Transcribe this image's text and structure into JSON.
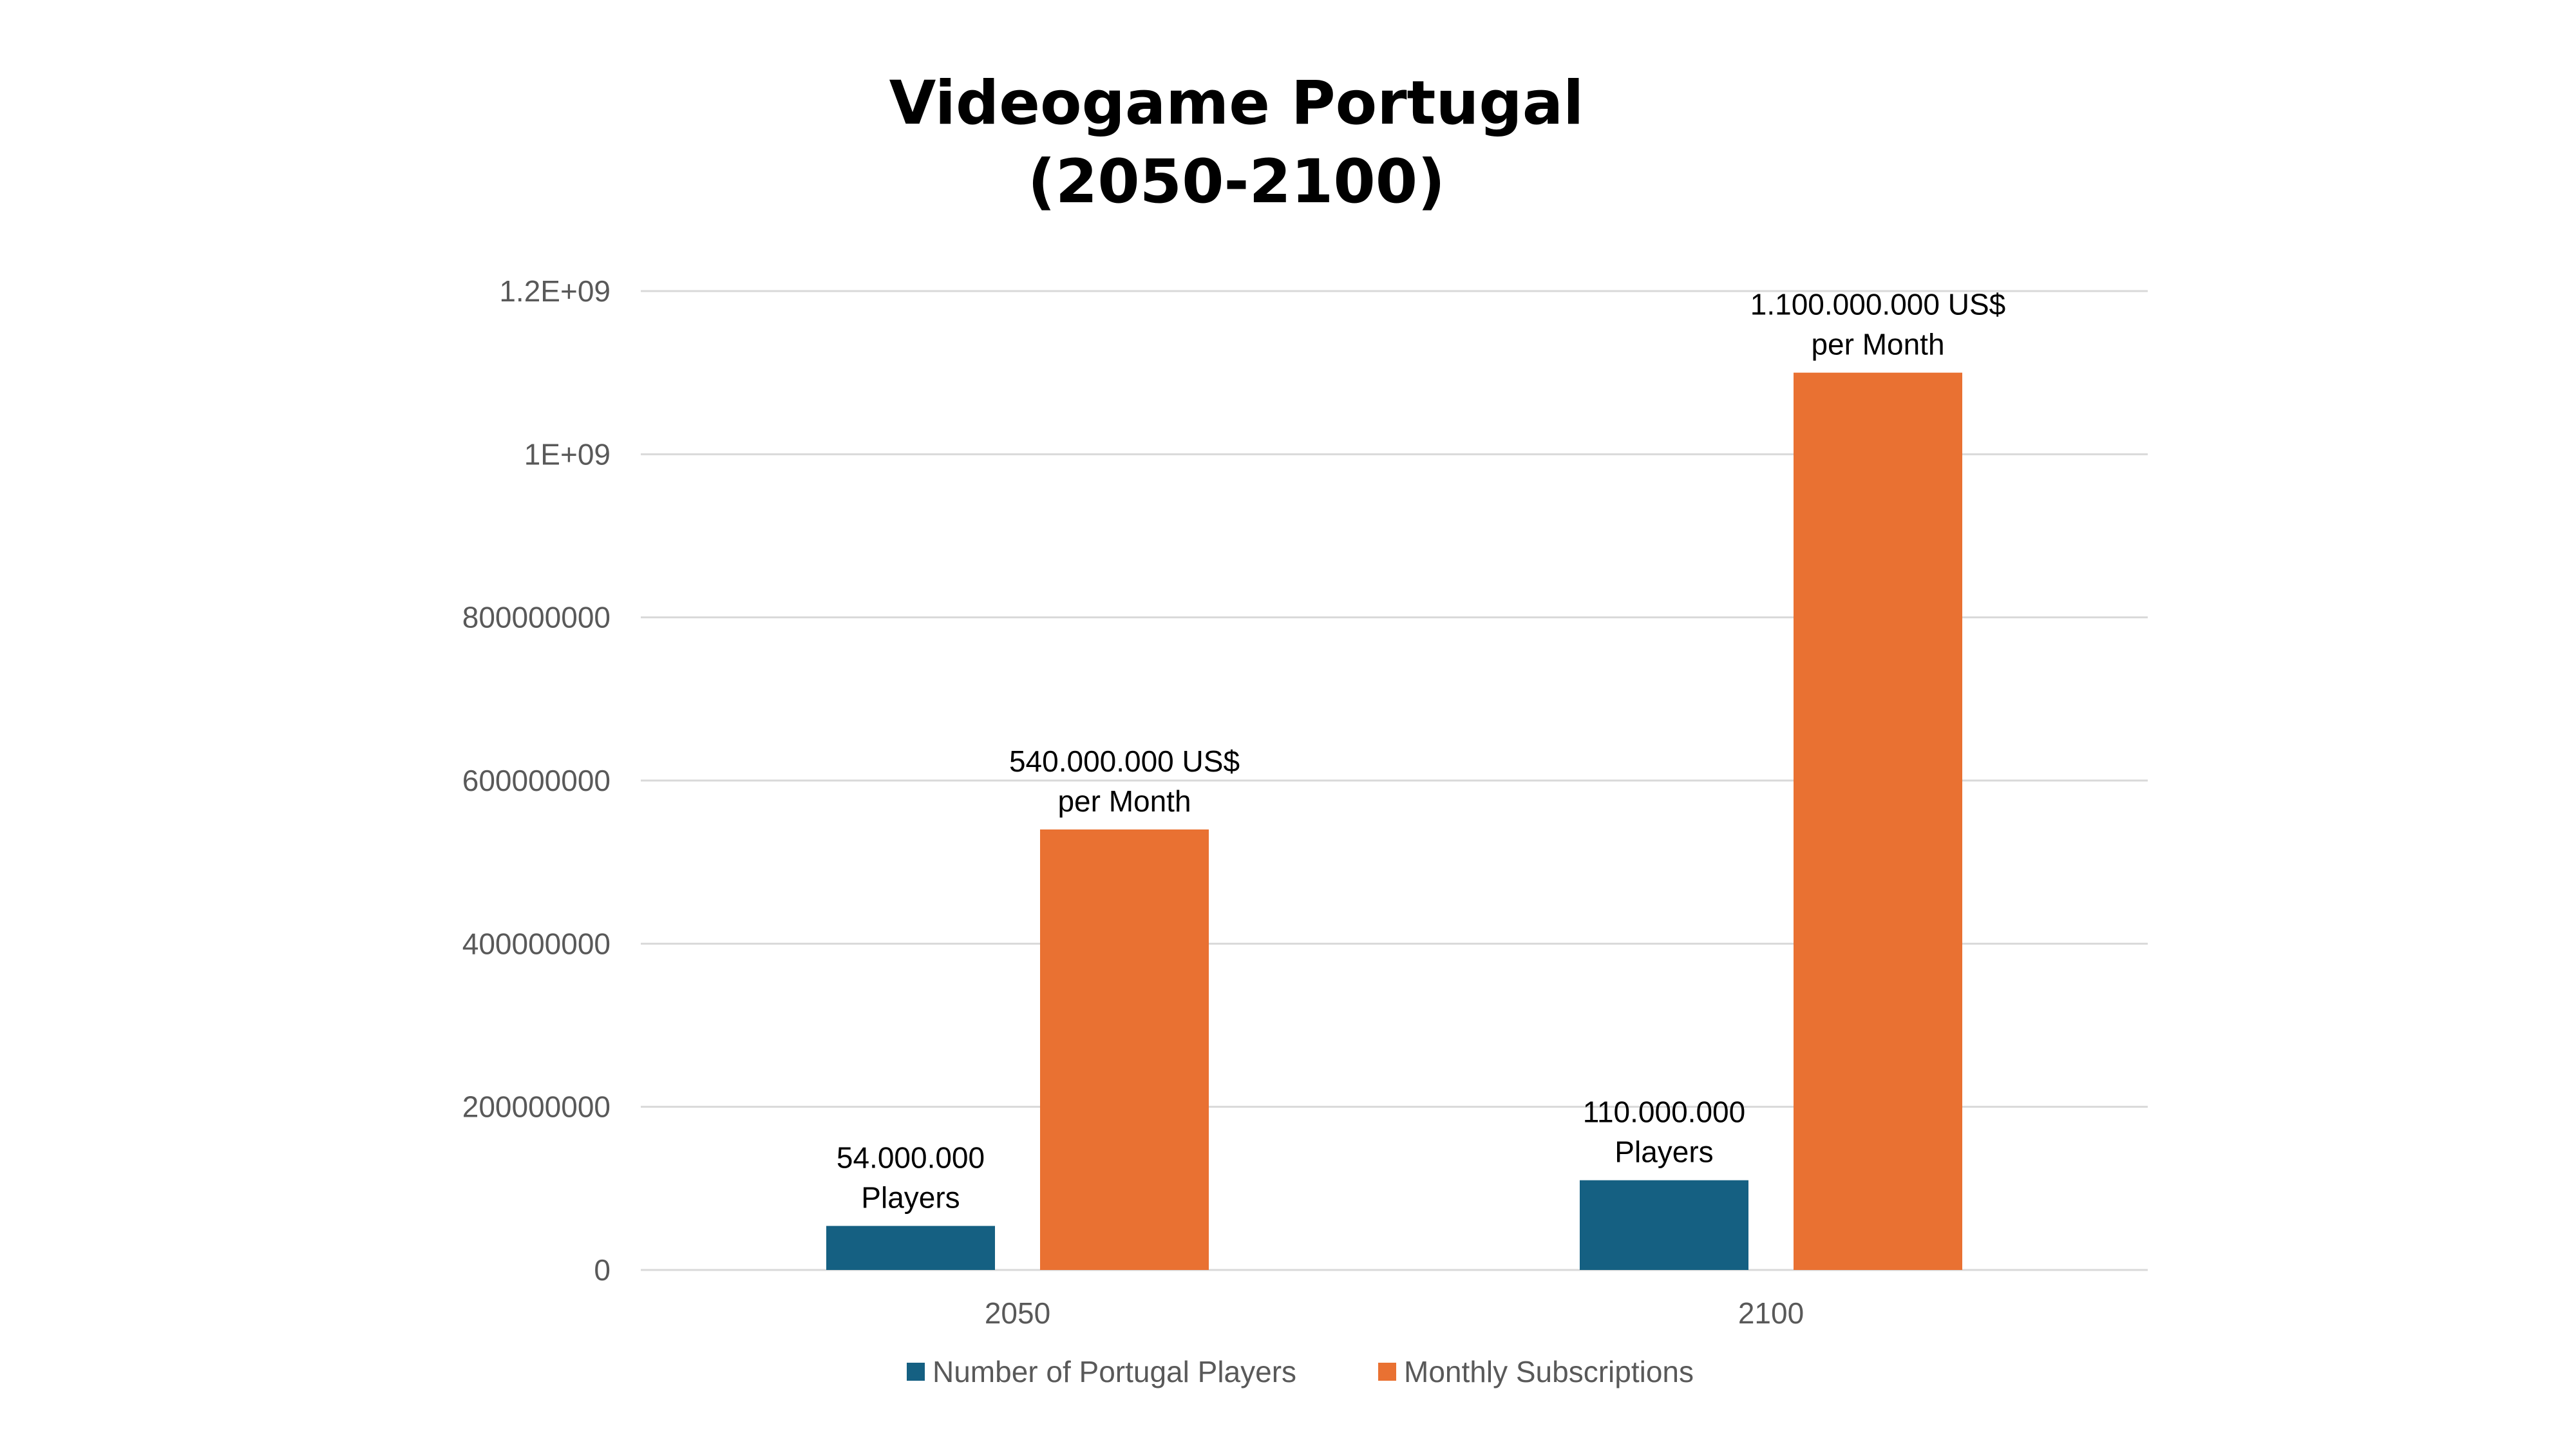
{
  "chart_data": {
    "type": "bar",
    "title": "Videogame Portugal",
    "subtitle": "(2050-2100)",
    "xlabel": "",
    "ylabel": "",
    "categories": [
      "2050",
      "2100"
    ],
    "ylim": [
      0,
      1200000000
    ],
    "yticks": [
      0,
      200000000,
      400000000,
      600000000,
      800000000,
      1000000000,
      1200000000
    ],
    "ytick_labels": [
      "0",
      "200000000",
      "400000000",
      "600000000",
      "800000000",
      "1E+09",
      "1.2E+09"
    ],
    "grid": true,
    "legend_position": "bottom",
    "series": [
      {
        "name": "Number of Portugal Players",
        "color": "#156082",
        "values": [
          54000000,
          110000000
        ],
        "data_labels": [
          [
            "54.000.000",
            "Players"
          ],
          [
            "110.000.000",
            "Players"
          ]
        ]
      },
      {
        "name": "Monthly Subscriptions",
        "color": "#E97132",
        "values": [
          540000000,
          1100000000
        ],
        "data_labels": [
          [
            "540.000.000 US$",
            "per Month"
          ],
          [
            "1.100.000.000 US$",
            "per Month"
          ]
        ]
      }
    ]
  }
}
